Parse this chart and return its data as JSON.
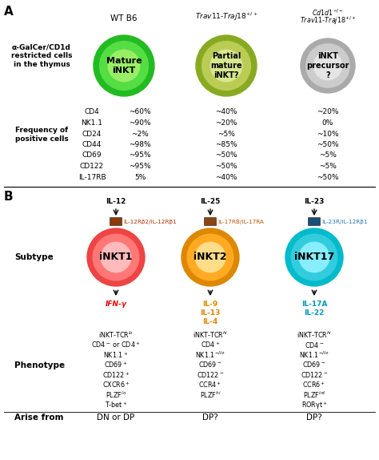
{
  "markers": [
    "CD4",
    "NK1.1",
    "CD24",
    "CD44",
    "CD69",
    "CD122",
    "IL-17RB"
  ],
  "col1_vals": [
    "~60%",
    "~90%",
    "~2%",
    "~98%",
    "~95%",
    "~95%",
    "5%"
  ],
  "col2_vals": [
    "~40%",
    "~20%",
    "~5%",
    "~85%",
    "~50%",
    "~50%",
    "~40%"
  ],
  "col3_vals": [
    "~20%",
    "0%",
    "~10%",
    "~50%",
    "~5%",
    "~5%",
    "~50%"
  ],
  "receptor1_label": "IL-12Rβ2/IL-12Rβ1",
  "receptor2_label": "IL-17RB/IL-17RA",
  "receptor3_label": "IL-23R/IL-12Rβ1",
  "inkt1_phenotype": [
    "iNKT-TCR$^{lo}$",
    "CD4$^-$ or CD4$^+$",
    "NK1.1$^+$",
    "CD69$^+$",
    "CD122$^+$",
    "CXCR6$^+$",
    "PLZF$^{lo}$",
    "T-bet$^+$"
  ],
  "inkt2_phenotype": [
    "iNKT-TCR$^{hi}$",
    "CD4$^+$",
    "NK1.1$^{-/lo}$",
    "CD69$^-$",
    "CD122$^-$",
    "CCR4$^+$",
    "PLZF$^{hi}$"
  ],
  "inkt17_phenotype": [
    "iNKT-TCR$^{hi}$",
    "CD4$^-$",
    "NK1.1$^{-/lo}$",
    "CD69$^-$",
    "CD122$^-$",
    "CCR6$^+$",
    "PLZF$^{int}$",
    "RORγt$^+$"
  ],
  "inkt1_arise": "DN or DP",
  "inkt2_arise": "DP?",
  "inkt17_arise": "DP?"
}
